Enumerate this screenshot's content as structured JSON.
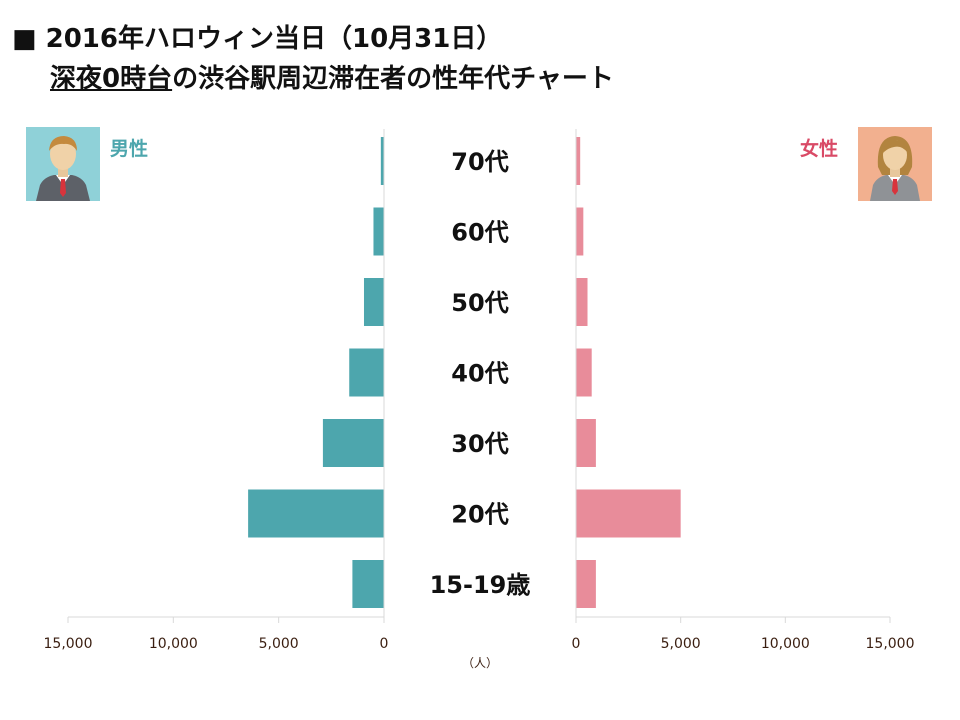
{
  "title_main": "■ 2016年ハロウィン当日（10月31日）",
  "title_sub_underlined": "深夜0時台",
  "title_sub_rest": "の渋谷駅周辺滞在者の性年代チャート",
  "labels": {
    "male": "男性",
    "female": "女性"
  },
  "colors": {
    "male": "#4da6ad",
    "female": "#e88c9a",
    "male_label": "#4da6ad",
    "female_label": "#d94a66",
    "male_avatar_bg": "#8fd1d8",
    "female_avatar_bg": "#f2b08f",
    "axis": "#d9d9d9",
    "category_text": "#111111",
    "tick_text": "#3a1e10"
  },
  "icons": {
    "male": "male-avatar-icon",
    "female": "female-avatar-icon"
  },
  "chart_data": {
    "type": "bar",
    "orientation": "horizontal-butterfly",
    "categories": [
      "70代",
      "60代",
      "50代",
      "40代",
      "30代",
      "20代",
      "15-19歳"
    ],
    "series": [
      {
        "name": "男性",
        "side": "left",
        "values": [
          150,
          500,
          950,
          1650,
          2900,
          6450,
          1500
        ]
      },
      {
        "name": "女性",
        "side": "right",
        "values": [
          200,
          350,
          550,
          750,
          950,
          5000,
          950
        ]
      }
    ],
    "xlim": [
      0,
      15000
    ],
    "male_ticks": [
      "15,000",
      "10,000",
      "5,000",
      "0"
    ],
    "female_ticks": [
      "0",
      "5,000",
      "10,000",
      "15,000"
    ],
    "tick_values": [
      0,
      5000,
      10000,
      15000
    ],
    "unit_label": "（人）",
    "grid": false,
    "legend": "none"
  }
}
